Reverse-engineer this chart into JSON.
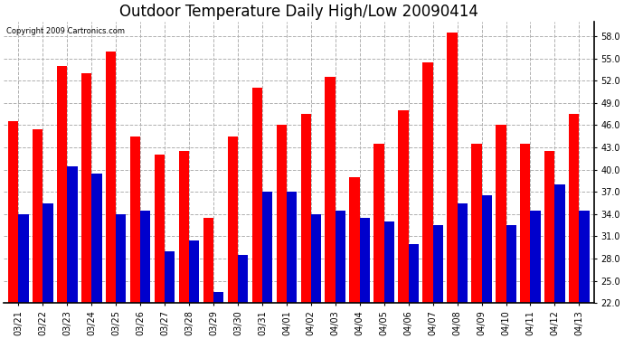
{
  "title": "Outdoor Temperature Daily High/Low 20090414",
  "copyright": "Copyright 2009 Cartronics.com",
  "dates": [
    "03/21",
    "03/22",
    "03/23",
    "03/24",
    "03/25",
    "03/26",
    "03/27",
    "03/28",
    "03/29",
    "03/30",
    "03/31",
    "04/01",
    "04/02",
    "04/03",
    "04/04",
    "04/05",
    "04/06",
    "04/07",
    "04/08",
    "04/09",
    "04/10",
    "04/11",
    "04/12",
    "04/13"
  ],
  "highs": [
    46.5,
    45.5,
    54.0,
    53.0,
    56.0,
    44.5,
    42.0,
    42.5,
    33.5,
    44.5,
    51.0,
    46.0,
    47.5,
    52.5,
    39.0,
    43.5,
    48.0,
    54.5,
    58.5,
    43.5,
    46.0,
    43.5,
    42.5,
    47.5
  ],
  "lows": [
    34.0,
    35.5,
    40.5,
    39.5,
    34.0,
    34.5,
    29.0,
    30.5,
    23.5,
    28.5,
    37.0,
    37.0,
    34.0,
    34.5,
    33.5,
    33.0,
    30.0,
    32.5,
    35.5,
    36.5,
    32.5,
    34.5,
    38.0,
    34.5
  ],
  "high_color": "#ff0000",
  "low_color": "#0000cc",
  "bg_color": "#ffffff",
  "grid_color": "#b0b0b0",
  "ylim": [
    22.0,
    60.0
  ],
  "yticks": [
    22.0,
    25.0,
    28.0,
    31.0,
    34.0,
    37.0,
    40.0,
    43.0,
    46.0,
    49.0,
    52.0,
    55.0,
    58.0
  ],
  "title_fontsize": 12,
  "tick_fontsize": 7,
  "bar_width": 0.42,
  "ybase": 22.0
}
